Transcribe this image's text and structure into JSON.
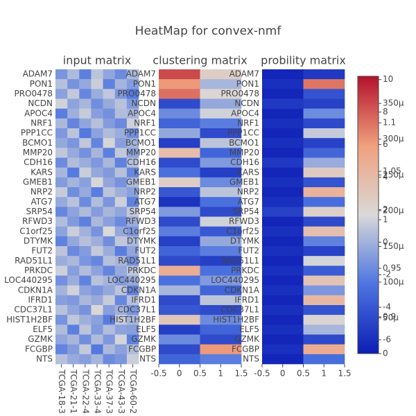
{
  "title": "HeatMap for convex-nmf",
  "colorscale": [
    [
      0,
      "#0c1db5"
    ],
    [
      0.25,
      "#4d74e0"
    ],
    [
      0.5,
      "#d9d9d9"
    ],
    [
      0.75,
      "#f0a07e"
    ],
    [
      1,
      "#b3122c"
    ]
  ],
  "chart_data": [
    {
      "type": "heatmap",
      "title": "input matrix",
      "categories": [
        "TCGA-18-3",
        "TCGA-21-1",
        "TCGA-22-4",
        "TCGA-33-4",
        "TCGA-37-3",
        "TCGA-43-3",
        "TCGA-60-2"
      ],
      "rows": [
        "ADAM7",
        "PON1",
        "PRO0478",
        "NCDN",
        "APOC4",
        "NRF1",
        "PPP1CC",
        "BCMO1",
        "MMP20",
        "CDH16",
        "KARS",
        "GMEB1",
        "NRP2",
        "ATG7",
        "SRP54",
        "RFWD3",
        "C1orf25",
        "DTYMK",
        "FUT2",
        "RAD51L1",
        "PRKDC",
        "LOC440295",
        "CDKN1A",
        "IFRD1",
        "CDC37L1",
        "HIST1H2BF",
        "ELF5",
        "GZMK",
        "FCGBP",
        "NTS"
      ],
      "z": [
        [
          -1.2,
          0.4,
          -2.1,
          0.8,
          -0.5,
          -1.6,
          0.3
        ],
        [
          0.6,
          -1.3,
          -0.4,
          1.2,
          -2.0,
          0.1,
          -0.9
        ],
        [
          -0.7,
          1.0,
          -1.8,
          -0.2,
          0.9,
          -1.1,
          -2.3
        ],
        [
          1.4,
          -0.6,
          0.2,
          -1.5,
          -0.3,
          0.7,
          -1.0
        ],
        [
          -2.2,
          -0.1,
          1.1,
          -0.8,
          -1.4,
          0.5,
          0.2
        ],
        [
          0.3,
          -1.9,
          -0.5,
          0.6,
          -0.9,
          -1.7,
          1.3
        ],
        [
          -1.1,
          0.8,
          -2.4,
          -0.6,
          0.4,
          -0.2,
          -1.5
        ],
        [
          -0.4,
          -1.2,
          0.9,
          -1.9,
          1.5,
          -0.8,
          0.1
        ],
        [
          0.9,
          -0.3,
          -1.4,
          0.2,
          -2.1,
          1.0,
          -0.6
        ],
        [
          -1.6,
          0.5,
          -0.2,
          -1.1,
          0.3,
          -2.0,
          0.7
        ],
        [
          0.2,
          -2.3,
          1.2,
          -0.4,
          -1.0,
          0.6,
          -1.8
        ],
        [
          -0.9,
          0.1,
          -0.7,
          1.6,
          -0.5,
          -1.3,
          0.4
        ],
        [
          1.1,
          -1.5,
          -0.3,
          -2.2,
          0.8,
          -0.1,
          -0.7
        ],
        [
          -0.3,
          0.7,
          -1.6,
          0.5,
          -1.2,
          1.3,
          -2.0
        ],
        [
          -1.8,
          -0.6,
          0.4,
          -0.9,
          0.2,
          -0.5,
          1.0
        ],
        [
          0.5,
          -1.0,
          -2.1,
          0.3,
          -0.7,
          -1.6,
          -0.2
        ],
        [
          -0.6,
          1.2,
          0.0,
          -1.3,
          1.7,
          -0.4,
          -1.1
        ],
        [
          -2.0,
          -0.4,
          0.6,
          -0.1,
          -1.5,
          0.9,
          0.3
        ],
        [
          0.8,
          -1.7,
          -0.9,
          1.0,
          -0.2,
          -2.2,
          -0.5
        ],
        [
          -0.2,
          0.3,
          -1.2,
          -1.8,
          0.6,
          0.2,
          -1.4
        ],
        [
          1.3,
          -0.8,
          0.5,
          -0.6,
          -1.9,
          -0.3,
          0.9
        ],
        [
          -1.4,
          -0.2,
          -2.0,
          0.7,
          0.1,
          -1.0,
          -0.3
        ],
        [
          0.1,
          1.4,
          -0.6,
          -1.2,
          -0.4,
          0.8,
          -1.9
        ],
        [
          -0.8,
          -1.1,
          0.3,
          -0.3,
          1.1,
          -1.8,
          0.6
        ],
        [
          0.7,
          -0.5,
          -1.3,
          1.8,
          -0.8,
          0.0,
          -1.2
        ],
        [
          -1.3,
          0.9,
          -0.1,
          -0.7,
          -2.3,
          1.1,
          0.2
        ],
        [
          0.4,
          -2.1,
          0.8,
          -1.0,
          0.5,
          -0.6,
          -0.8
        ],
        [
          -0.5,
          0.2,
          -1.5,
          0.4,
          -1.1,
          1.5,
          -2.1
        ],
        [
          -1.9,
          -0.9,
          1.0,
          -2.4,
          0.3,
          -0.7,
          0.5
        ],
        [
          0.6,
          -0.3,
          -0.8,
          0.1,
          -1.6,
          -1.2,
          1.2
        ]
      ],
      "zlim": [
        -6.85,
        10.2
      ],
      "zticks": [
        10,
        8,
        6,
        4,
        2,
        0,
        -2,
        -4,
        -6
      ]
    },
    {
      "type": "heatmap",
      "title": "clustering matrix",
      "x": [
        0,
        1
      ],
      "xlim": [
        -0.5,
        1.5
      ],
      "xticks": [
        -0.5,
        0,
        0.5,
        1,
        1.5
      ],
      "rows": [
        "ADAM7",
        "PON1",
        "PRO0478",
        "NCDN",
        "APOC4",
        "NRF1",
        "PPP1CC",
        "BCMO1",
        "MMP20",
        "CDH16",
        "KARS",
        "GMEB1",
        "NRP2",
        "ATG7",
        "SRP54",
        "RFWD3",
        "C1orf25",
        "DTYMK",
        "FUT2",
        "RAD51L1",
        "PRKDC",
        "LOC440295",
        "CDKN1A",
        "IFRD1",
        "CDC37L1",
        "HIST1H2BF",
        "ELF5",
        "GZMK",
        "FCGBP",
        "NTS"
      ],
      "z": [
        [
          1.12,
          1.02
        ],
        [
          1.08,
          0.98
        ],
        [
          1.1,
          1.01
        ],
        [
          0.9,
          0.97
        ],
        [
          0.95,
          1.0
        ],
        [
          0.92,
          0.94
        ],
        [
          0.97,
          0.9
        ],
        [
          0.89,
          0.99
        ],
        [
          1.04,
          0.92
        ],
        [
          0.9,
          0.96
        ],
        [
          0.93,
          0.89
        ],
        [
          1.02,
          0.95
        ],
        [
          0.91,
          0.99
        ],
        [
          0.88,
          0.93
        ],
        [
          0.96,
          0.9
        ],
        [
          0.9,
          1.0
        ],
        [
          0.94,
          0.91
        ],
        [
          0.89,
          0.97
        ],
        [
          0.92,
          0.94
        ],
        [
          0.9,
          0.89
        ],
        [
          1.06,
          0.93
        ],
        [
          0.93,
          0.96
        ],
        [
          0.98,
          0.92
        ],
        [
          0.9,
          0.99
        ],
        [
          0.91,
          0.9
        ],
        [
          1.03,
          0.95
        ],
        [
          0.89,
          0.92
        ],
        [
          0.95,
          0.9
        ],
        [
          0.9,
          1.08
        ],
        [
          0.92,
          0.94
        ]
      ],
      "zlim": [
        0.862,
        1.148
      ],
      "zticks": [
        1.1,
        1.05,
        1,
        0.95,
        0.9
      ]
    },
    {
      "type": "heatmap",
      "title": "probility matrix",
      "x": [
        0,
        1
      ],
      "xlim": [
        -0.5,
        1.5
      ],
      "xticks": [
        -0.5,
        0,
        0.5,
        1,
        1.5
      ],
      "rows": [
        "ADAM7",
        "PON1",
        "PRO0478",
        "NCDN",
        "APOC4",
        "NRF1",
        "PPP1CC",
        "BCMO1",
        "MMP20",
        "CDH16",
        "KARS",
        "GMEB1",
        "NRP2",
        "ATG7",
        "SRP54",
        "RFWD3",
        "C1orf25",
        "DTYMK",
        "FUT2",
        "RAD51L1",
        "PRKDC",
        "LOC440295",
        "CDKN1A",
        "IFRD1",
        "CDC37L1",
        "HIST1H2BF",
        "ELF5",
        "GZMK",
        "FCGBP",
        "NTS"
      ],
      "z": [
        [
          1e-05,
          3e-05
        ],
        [
          2e-05,
          0.00032
        ],
        [
          1e-05,
          6e-05
        ],
        [
          3e-05,
          4e-05
        ],
        [
          1e-05,
          0.00012
        ],
        [
          2e-05,
          5e-05
        ],
        [
          1e-05,
          0.00018
        ],
        [
          2e-05,
          4e-05
        ],
        [
          1e-05,
          8e-05
        ],
        [
          3e-05,
          0.00015
        ],
        [
          1e-05,
          0.00022
        ],
        [
          2e-05,
          6e-05
        ],
        [
          1e-05,
          0.00026
        ],
        [
          2e-05,
          9e-05
        ],
        [
          4e-05,
          0.00021
        ],
        [
          1e-05,
          5e-05
        ],
        [
          2e-05,
          0.00024
        ],
        [
          1e-05,
          0.00011
        ],
        [
          2e-05,
          4e-05
        ],
        [
          1e-05,
          0.00019
        ],
        [
          2e-05,
          7e-05
        ],
        [
          1e-05,
          0.00023
        ],
        [
          2e-05,
          0.00013
        ],
        [
          1e-05,
          0.00025
        ],
        [
          2e-05,
          6e-05
        ],
        [
          1e-05,
          0.0002
        ],
        [
          2e-05,
          0.00016
        ],
        [
          1e-05,
          5e-05
        ],
        [
          2e-05,
          0.00027
        ],
        [
          1e-05,
          9e-05
        ]
      ],
      "zlim": [
        0,
        0.000388
      ],
      "zticks": [
        {
          "value": 0.00035,
          "label": "350μ"
        },
        {
          "value": 0.0003,
          "label": "300μ"
        },
        {
          "value": 0.00025,
          "label": "250μ"
        },
        {
          "value": 0.0002,
          "label": "200μ"
        },
        {
          "value": 0.00015,
          "label": "150μ"
        },
        {
          "value": 0.0001,
          "label": "100μ"
        },
        {
          "value": 5e-05,
          "label": "50μ"
        },
        0
      ]
    }
  ]
}
